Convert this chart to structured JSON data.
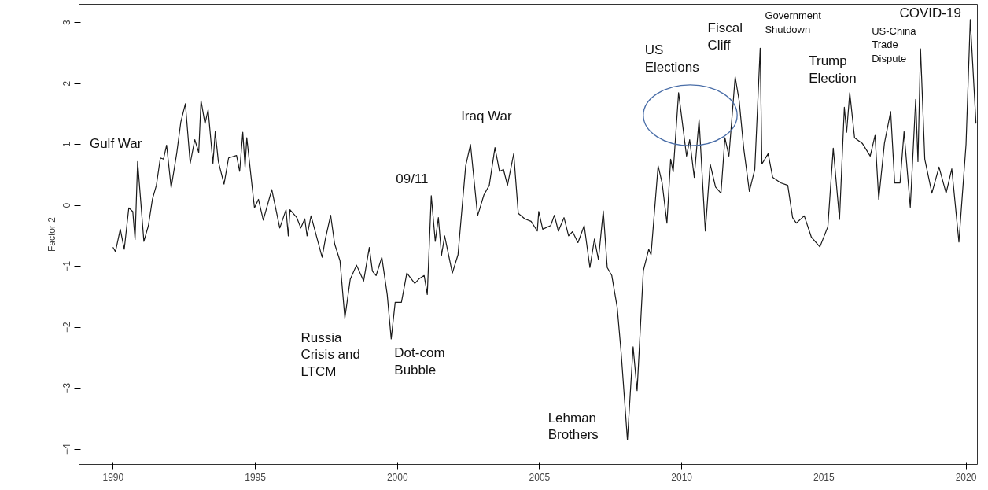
{
  "chart_data": {
    "type": "line",
    "ylabel": "Factor 2",
    "x": [
      1990.0,
      1990.08,
      1990.25,
      1990.39,
      1990.55,
      1990.69,
      1990.77,
      1990.86,
      1991.08,
      1991.24,
      1991.38,
      1991.52,
      1991.66,
      1991.77,
      1991.88,
      1992.04,
      1992.24,
      1992.38,
      1992.54,
      1992.71,
      1992.87,
      1993.01,
      1993.09,
      1993.23,
      1993.34,
      1993.51,
      1993.59,
      1993.7,
      1993.9,
      1994.06,
      1994.34,
      1994.45,
      1994.56,
      1994.64,
      1994.7,
      1994.97,
      1995.11,
      1995.28,
      1995.58,
      1995.86,
      1996.08,
      1996.16,
      1996.22,
      1996.46,
      1996.6,
      1996.74,
      1996.82,
      1996.96,
      1997.35,
      1997.46,
      1997.65,
      1997.79,
      1997.98,
      1998.15,
      1998.34,
      1998.56,
      1998.81,
      1999.01,
      1999.12,
      1999.25,
      1999.45,
      1999.64,
      1999.78,
      1999.92,
      2000.14,
      2000.33,
      2000.61,
      2000.77,
      2000.94,
      2001.05,
      2001.19,
      2001.33,
      2001.44,
      2001.55,
      2001.66,
      2001.93,
      2002.13,
      2002.4,
      2002.57,
      2002.82,
      2003.04,
      2003.23,
      2003.43,
      2003.59,
      2003.73,
      2003.87,
      2004.09,
      2004.25,
      2004.48,
      2004.7,
      2004.92,
      2004.97,
      2005.11,
      2005.39,
      2005.52,
      2005.66,
      2005.86,
      2006.02,
      2006.16,
      2006.35,
      2006.57,
      2006.77,
      2006.93,
      2007.07,
      2007.24,
      2007.38,
      2007.54,
      2007.73,
      2007.87,
      2008.09,
      2008.29,
      2008.43,
      2008.65,
      2008.84,
      2008.92,
      2009.17,
      2009.31,
      2009.48,
      2009.61,
      2009.7,
      2009.89,
      2010.17,
      2010.28,
      2010.44,
      2010.61,
      2010.83,
      2011.0,
      2011.19,
      2011.38,
      2011.52,
      2011.66,
      2011.88,
      2012.02,
      2012.18,
      2012.38,
      2012.57,
      2012.76,
      2012.82,
      2013.04,
      2013.2,
      2013.48,
      2013.73,
      2013.9,
      2014.03,
      2014.31,
      2014.56,
      2014.86,
      2015.14,
      2015.33,
      2015.55,
      2015.72,
      2015.8,
      2015.91,
      2016.08,
      2016.35,
      2016.63,
      2016.8,
      2016.93,
      2017.13,
      2017.35,
      2017.49,
      2017.68,
      2017.82,
      2018.04,
      2018.23,
      2018.31,
      2018.4,
      2018.55,
      2018.8,
      2019.05,
      2019.3,
      2019.5,
      2019.75,
      2020.0,
      2020.15,
      2020.35
    ],
    "series": [
      {
        "color": "#1a1a1a",
        "values": [
          -0.69,
          -0.76,
          -0.39,
          -0.72,
          -0.04,
          -0.1,
          -0.56,
          0.72,
          -0.59,
          -0.33,
          0.1,
          0.33,
          0.78,
          0.76,
          0.99,
          0.29,
          0.87,
          1.37,
          1.67,
          0.69,
          1.08,
          0.87,
          1.72,
          1.34,
          1.57,
          0.69,
          1.21,
          0.72,
          0.35,
          0.78,
          0.82,
          0.56,
          1.2,
          0.63,
          1.11,
          -0.04,
          0.1,
          -0.24,
          0.26,
          -0.37,
          -0.07,
          -0.5,
          -0.07,
          -0.2,
          -0.37,
          -0.22,
          -0.5,
          -0.17,
          -0.85,
          -0.56,
          -0.16,
          -0.63,
          -0.91,
          -1.85,
          -1.21,
          -0.98,
          -1.24,
          -0.69,
          -1.08,
          -1.15,
          -0.85,
          -1.46,
          -2.19,
          -1.59,
          -1.59,
          -1.11,
          -1.28,
          -1.2,
          -1.15,
          -1.46,
          0.16,
          -0.59,
          -0.2,
          -0.82,
          -0.5,
          -1.11,
          -0.81,
          0.65,
          1.0,
          -0.17,
          0.17,
          0.33,
          0.95,
          0.56,
          0.59,
          0.33,
          0.85,
          -0.13,
          -0.22,
          -0.26,
          -0.42,
          -0.1,
          -0.39,
          -0.33,
          -0.16,
          -0.42,
          -0.2,
          -0.5,
          -0.43,
          -0.61,
          -0.33,
          -1.02,
          -0.55,
          -0.89,
          -0.09,
          -1.02,
          -1.15,
          -1.67,
          -2.42,
          -3.85,
          -2.32,
          -3.04,
          -1.07,
          -0.72,
          -0.81,
          0.65,
          0.37,
          -0.29,
          0.76,
          0.55,
          1.85,
          0.81,
          1.08,
          0.46,
          1.41,
          -0.42,
          0.68,
          0.3,
          0.2,
          1.11,
          0.81,
          2.11,
          1.72,
          0.94,
          0.23,
          0.59,
          2.58,
          0.68,
          0.85,
          0.46,
          0.37,
          0.33,
          -0.2,
          -0.29,
          -0.17,
          -0.52,
          -0.68,
          -0.35,
          0.94,
          -0.23,
          1.61,
          1.2,
          1.85,
          1.11,
          1.02,
          0.81,
          1.15,
          0.1,
          1.02,
          1.54,
          0.37,
          0.37,
          1.21,
          -0.03,
          1.74,
          0.72,
          2.57,
          0.76,
          0.2,
          0.63,
          0.2,
          0.6,
          -0.6,
          1.0,
          3.05,
          1.35
        ]
      }
    ],
    "xlim": [
      1988.8,
      2020.4
    ],
    "ylim": [
      -4.25,
      3.3
    ],
    "xticks": [
      1990,
      1995,
      2000,
      2005,
      2010,
      2015,
      2020
    ],
    "yticks": [
      -4,
      -3,
      -2,
      -1,
      0,
      1,
      2,
      3
    ],
    "grid": false,
    "marker": "none",
    "line_style": "solid",
    "annotations": [
      {
        "text": "Gulf War",
        "x": 1990.86,
        "y": 0.72
      },
      {
        "text": "Russia\nCrisis and\nLTCM",
        "x": 1998.15,
        "y": -1.85
      },
      {
        "text": "Dot-com\nBubble",
        "x": 1999.78,
        "y": -2.19
      },
      {
        "text": "09/11",
        "x": 2001.19,
        "y": 0.16
      },
      {
        "text": "Iraq War",
        "x": 2002.57,
        "y": 1.0
      },
      {
        "text": "Lehman\nBrothers",
        "x": 2008.09,
        "y": -3.85
      },
      {
        "text": "US\nElections",
        "x": 2009.89,
        "y": 1.85
      },
      {
        "text": "Fiscal\nCliff",
        "x": 2011.88,
        "y": 2.11
      },
      {
        "text": "Government\nShutdown",
        "x": 2012.76,
        "y": 2.58
      },
      {
        "text": "Trump\nElection",
        "x": 2015.91,
        "y": 1.85
      },
      {
        "text": "US-China\nTrade\nDispute",
        "x": 2018.4,
        "y": 2.57
      },
      {
        "text": "COVID-19",
        "x": 2020.15,
        "y": 3.05
      }
    ]
  }
}
